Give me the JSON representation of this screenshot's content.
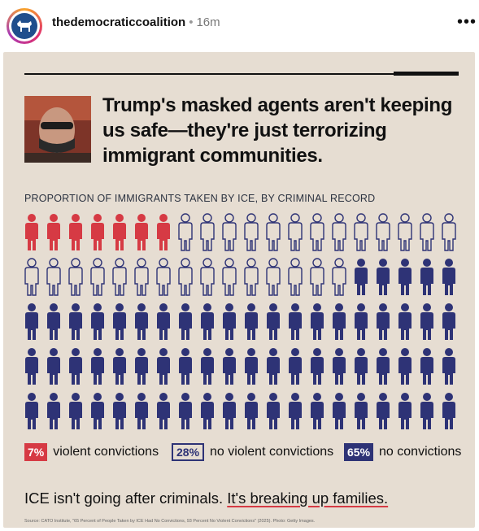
{
  "post": {
    "username": "thedemocraticcoalition",
    "separator": "•",
    "time": "16m",
    "more_label": "•••"
  },
  "infographic": {
    "headline": "Trump's masked agents aren't keeping us safe—they're just terrorizing immigrant communities.",
    "subheading": "PROPORTION OF IMMIGRANTS TAKEN BY ICE, BY CRIMINAL RECORD",
    "legend": [
      {
        "pct": "7%",
        "label": "violent convictions",
        "style": "red"
      },
      {
        "pct": "28%",
        "label": "no violent convictions",
        "style": "outline"
      },
      {
        "pct": "65%",
        "label": "no convictions",
        "style": "navy"
      }
    ],
    "footer_lead": "ICE isn't going after criminals.",
    "footer_emphasis": "It's breaking up families.",
    "source": "Source: CATO Institute, \"65 Percent of People Taken by ICE Had No Convictions, 93 Percent No Violent Convictions\" (2025). Photo: Getty Images."
  },
  "chart_data": {
    "type": "pictogram",
    "categories": [
      "violent convictions",
      "no violent convictions",
      "no convictions"
    ],
    "values": [
      7,
      28,
      65
    ],
    "units": "%",
    "total_icons": 100,
    "colors": {
      "violent convictions": "#d63a44",
      "no violent convictions": "outline",
      "no convictions": "#2e3376"
    }
  },
  "colors": {
    "red": "#d63a44",
    "navy": "#2e3376",
    "card_bg": "#e6ddd2"
  }
}
